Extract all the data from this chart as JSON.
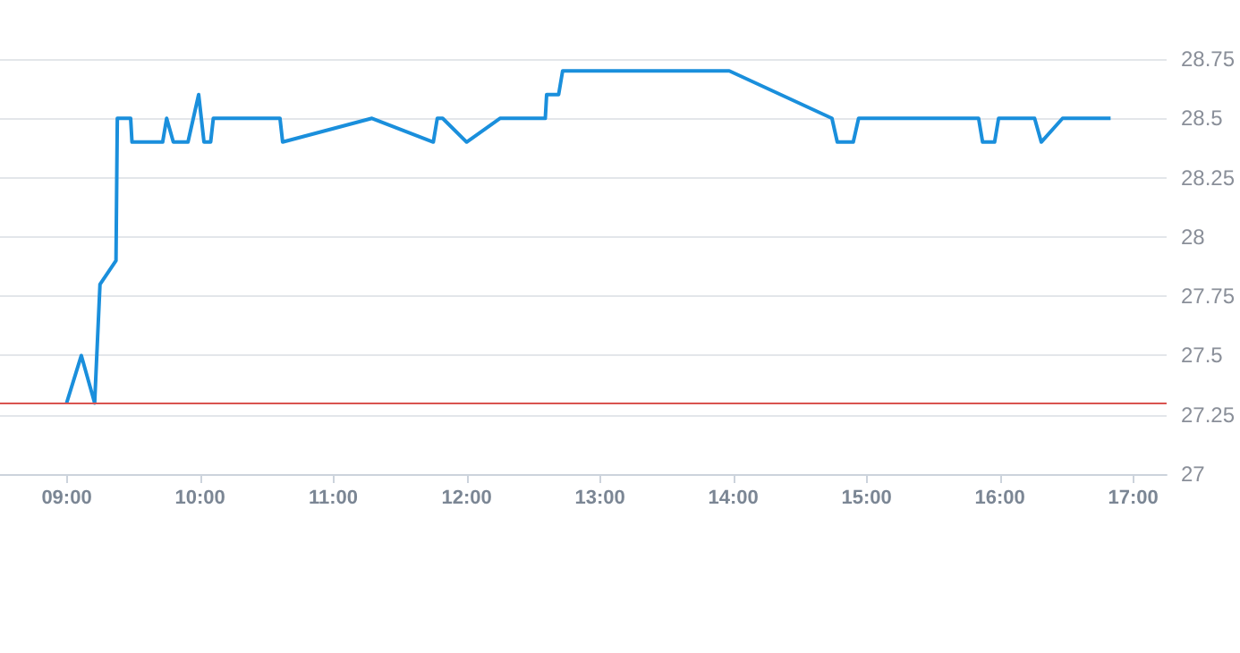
{
  "chart_data": {
    "type": "line",
    "x": [
      9,
      9.11,
      9.21,
      9.25,
      9.37,
      9.38,
      9.48,
      9.49,
      9.72,
      9.75,
      9.8,
      9.91,
      9.99,
      10.03,
      10.08,
      10.1,
      10.6,
      10.62,
      11.29,
      11.75,
      11.78,
      11.82,
      12,
      12.25,
      12.59,
      12.6,
      12.69,
      12.72,
      13.97,
      14.74,
      14.78,
      14.9,
      14.94,
      15.84,
      15.87,
      15.96,
      15.99,
      16.26,
      16.31,
      16.47,
      16.83
    ],
    "series": [
      {
        "color": "#1a8fdc",
        "values": [
          27.3,
          27.5,
          27.3,
          27.8,
          27.9,
          28.5,
          28.5,
          28.4,
          28.4,
          28.5,
          28.4,
          28.4,
          28.6,
          28.4,
          28.4,
          28.5,
          28.5,
          28.4,
          28.5,
          28.4,
          28.5,
          28.5,
          28.4,
          28.5,
          28.5,
          28.6,
          28.6,
          28.7,
          28.7,
          28.5,
          28.4,
          28.4,
          28.5,
          28.5,
          28.4,
          28.4,
          28.5,
          28.5,
          28.4,
          28.5,
          28.5
        ]
      }
    ],
    "xlim": [
      8.5,
      17.25
    ],
    "xticks": [
      {
        "value": 9,
        "label": "09:00"
      },
      {
        "value": 10,
        "label": "10:00"
      },
      {
        "value": 11,
        "label": "11:00"
      },
      {
        "value": 12,
        "label": "12:00"
      },
      {
        "value": 13,
        "label": "13:00"
      },
      {
        "value": 14,
        "label": "14:00"
      },
      {
        "value": 15,
        "label": "15:00"
      },
      {
        "value": 16,
        "label": "16:00"
      },
      {
        "value": 17,
        "label": "17:00"
      }
    ],
    "ylim": [
      27,
      28.75
    ],
    "yticks": [
      27,
      27.25,
      27.5,
      27.75,
      28,
      28.25,
      28.5,
      28.75
    ],
    "ref_lines": [
      {
        "axis": "y",
        "value": 27.3,
        "color": "#d9534f"
      }
    ],
    "grid": "y",
    "marker": "none",
    "line_style": "solid"
  }
}
